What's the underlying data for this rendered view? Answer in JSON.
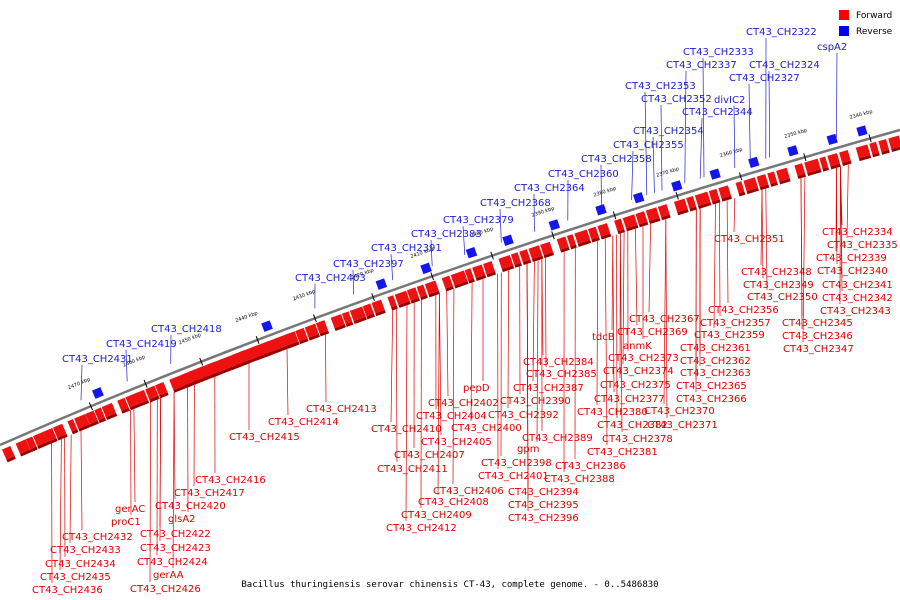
{
  "legend": {
    "forward": "Forward",
    "reverse": "Reverse",
    "forward_color": "#ff0000",
    "reverse_color": "#0000ff"
  },
  "caption": "Bacillus thuringiensis serovar chinensis CT-43, complete genome. - 0..5486830",
  "ticks": [
    "2340 kbp",
    "2350 kbp",
    "2360 kbp",
    "2370 kbp",
    "2380 kbp",
    "2390 kbp",
    "2400 kbp",
    "2410 kbp",
    "2420 kbp",
    "2430 kbp",
    "2440 kbp",
    "2450 kbp",
    "2460 kbp",
    "2470 kbp"
  ],
  "reverse_labels": [
    "cspA2",
    "CT43_CH2322",
    "CT43_CH2324",
    "CT43_CH2327",
    "CT43_CH2333",
    "CT43_CH2337",
    "divIC2",
    "CT43_CH2344",
    "CT43_CH2352",
    "CT43_CH2353",
    "CT43_CH2354",
    "CT43_CH2355",
    "CT43_CH2358",
    "CT43_CH2360",
    "CT43_CH2364",
    "CT43_CH2368",
    "CT43_CH2379",
    "CT43_CH2383",
    "CT43_CH2391",
    "CT43_CH2397",
    "CT43_CH2403",
    "CT43_CH2418",
    "CT43_CH2419",
    "CT43_CH2431"
  ],
  "forward_labels": [
    "CT43_CH2334",
    "CT43_CH2335",
    "CT43_CH2339",
    "CT43_CH2340",
    "CT43_CH2341",
    "CT43_CH2342",
    "CT43_CH2343",
    "CT43_CH2345",
    "CT43_CH2346",
    "CT43_CH2347",
    "CT43_CH2348",
    "CT43_CH2349",
    "CT43_CH2350",
    "CT43_CH2351",
    "CT43_CH2356",
    "CT43_CH2357",
    "CT43_CH2359",
    "CT43_CH2361",
    "CT43_CH2362",
    "CT43_CH2363",
    "CT43_CH2365",
    "CT43_CH2366",
    "CT43_CH2367",
    "CT43_CH2369",
    "tdcB",
    "anmK",
    "CT43_CH2373",
    "CT43_CH2374",
    "CT43_CH2375",
    "CT43_CH2377",
    "CT43_CH2370",
    "CT43_CH2371",
    "CT43_CH2380",
    "CT43_CH2382",
    "CT43_CH2378",
    "CT43_CH2381",
    "CT43_CH2384",
    "CT43_CH2385",
    "CT43_CH2387",
    "CT43_CH2390",
    "CT43_CH2392",
    "CT43_CH2389",
    "CT43_CH2386",
    "CT43_CH2388",
    "pepD",
    "CT43_CH2402",
    "CT43_CH2404",
    "CT43_CH2400",
    "CT43_CH2405",
    "gpm",
    "CT43_CH2398",
    "CT43_CH2401",
    "CT43_CH2394",
    "CT43_CH2395",
    "CT43_CH2396",
    "CT43_CH2413",
    "CT43_CH2414",
    "CT43_CH2415",
    "CT43_CH2410",
    "CT43_CH2407",
    "CT43_CH2411",
    "CT43_CH2408",
    "CT43_CH2406",
    "CT43_CH2409",
    "CT43_CH2412",
    "CT43_CH2416",
    "CT43_CH2417",
    "CT43_CH2420",
    "gerAC",
    "proC1",
    "glsA2",
    "CT43_CH2422",
    "CT43_CH2423",
    "CT43_CH2424",
    "gerAA",
    "CT43_CH2426",
    "CT43_CH2432",
    "CT43_CH2433",
    "CT43_CH2434",
    "CT43_CH2435",
    "CT43_CH2436"
  ]
}
